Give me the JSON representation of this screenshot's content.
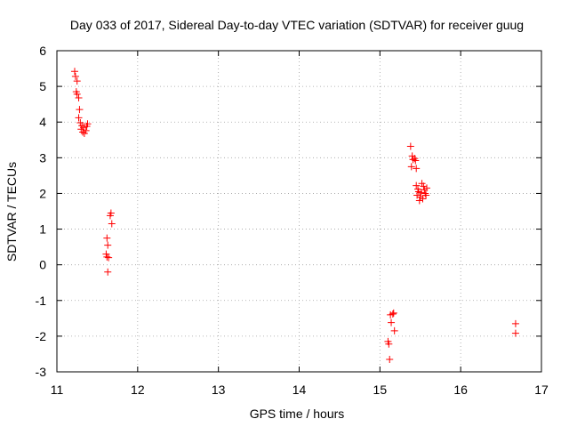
{
  "chart_data": {
    "type": "scatter",
    "title": "Day 033 of 2017, Sidereal Day-to-day VTEC variation (SDTVAR) for receiver guug",
    "xlabel": "GPS time / hours",
    "ylabel": "SDTVAR / TECUs",
    "xlim": [
      11,
      17
    ],
    "ylim": [
      -3,
      6
    ],
    "xticks": [
      11,
      12,
      13,
      14,
      15,
      16,
      17
    ],
    "yticks": [
      -3,
      -2,
      -1,
      0,
      1,
      2,
      3,
      4,
      5,
      6
    ],
    "grid": true,
    "marker": "+",
    "color": "#ff0000",
    "series": [
      {
        "name": "SDTVAR",
        "points": [
          [
            11.22,
            5.42
          ],
          [
            11.23,
            5.28
          ],
          [
            11.25,
            5.15
          ],
          [
            11.24,
            4.85
          ],
          [
            11.25,
            4.78
          ],
          [
            11.27,
            4.68
          ],
          [
            11.28,
            4.35
          ],
          [
            11.27,
            4.12
          ],
          [
            11.29,
            3.98
          ],
          [
            11.31,
            3.9
          ],
          [
            11.3,
            3.8
          ],
          [
            11.32,
            3.72
          ],
          [
            11.34,
            3.68
          ],
          [
            11.36,
            3.76
          ],
          [
            11.37,
            3.88
          ],
          [
            11.38,
            3.95
          ],
          [
            11.33,
            3.85
          ],
          [
            11.62,
            0.75
          ],
          [
            11.63,
            0.55
          ],
          [
            11.61,
            0.3
          ],
          [
            11.62,
            0.22
          ],
          [
            11.64,
            0.2
          ],
          [
            11.63,
            -0.2
          ],
          [
            11.66,
            1.38
          ],
          [
            11.67,
            1.45
          ],
          [
            11.68,
            1.15
          ],
          [
            15.38,
            3.32
          ],
          [
            15.4,
            3.05
          ],
          [
            15.41,
            2.95
          ],
          [
            15.43,
            2.98
          ],
          [
            15.44,
            2.92
          ],
          [
            15.39,
            2.75
          ],
          [
            15.45,
            2.7
          ],
          [
            15.45,
            2.22
          ],
          [
            15.47,
            2.12
          ],
          [
            15.48,
            2.05
          ],
          [
            15.46,
            1.95
          ],
          [
            15.5,
            1.9
          ],
          [
            15.49,
            1.8
          ],
          [
            15.52,
            2.28
          ],
          [
            15.54,
            2.2
          ],
          [
            15.55,
            2.1
          ],
          [
            15.56,
            2.0
          ],
          [
            15.53,
            1.85
          ],
          [
            15.57,
            1.95
          ],
          [
            15.58,
            2.15
          ],
          [
            15.51,
            2.02
          ],
          [
            15.1,
            -2.15
          ],
          [
            15.11,
            -2.22
          ],
          [
            15.12,
            -2.65
          ],
          [
            15.14,
            -1.62
          ],
          [
            15.13,
            -1.4
          ],
          [
            15.16,
            -1.38
          ],
          [
            15.17,
            -1.35
          ],
          [
            15.18,
            -1.85
          ],
          [
            16.68,
            -1.65
          ],
          [
            16.68,
            -1.92
          ]
        ]
      }
    ]
  }
}
